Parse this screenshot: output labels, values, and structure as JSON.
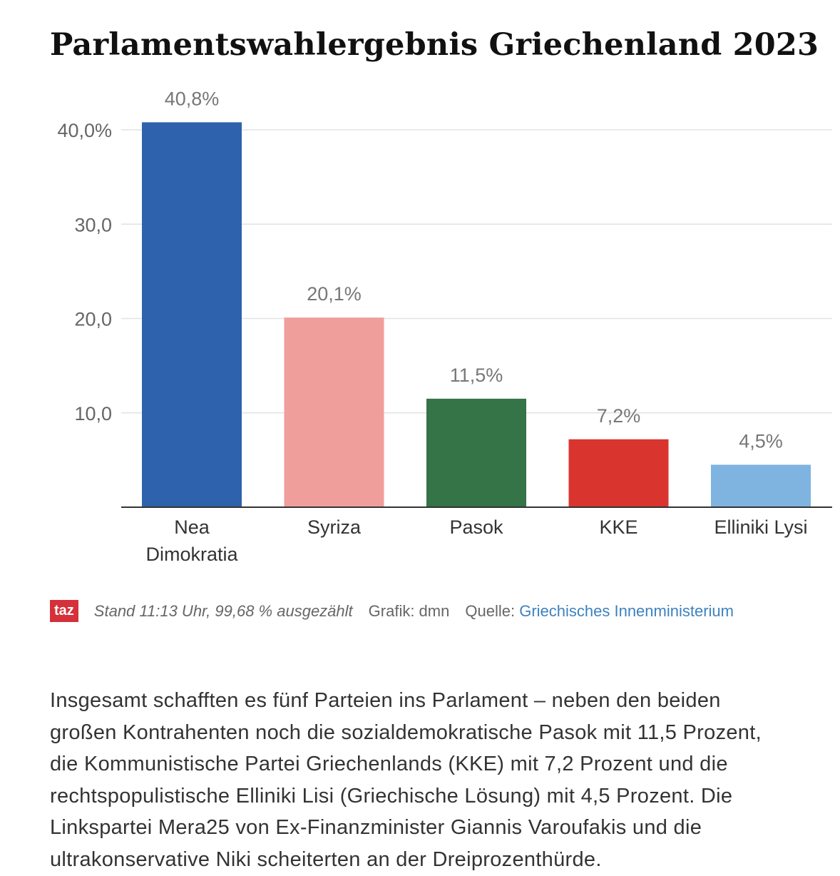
{
  "chart_data": {
    "type": "bar",
    "title": "Parlamentswahlergebnis Griechenland 2023",
    "categories": [
      [
        "Nea",
        "Dimokratia"
      ],
      [
        "Syriza"
      ],
      [
        "Pasok"
      ],
      [
        "KKE"
      ],
      [
        "Elliniki Lysi"
      ]
    ],
    "values": [
      40.8,
      20.1,
      11.5,
      7.2,
      4.5
    ],
    "data_labels": [
      "40,8%",
      "20,1%",
      "11,5%",
      "7,2%",
      "4,5%"
    ],
    "colors": [
      "#2f62ad",
      "#f09e9b",
      "#347446",
      "#d9352e",
      "#7fb3e0"
    ],
    "yticks": [
      10,
      20,
      30,
      40
    ],
    "ytick_labels": [
      "10,0",
      "20,0",
      "30,0",
      "40,0%"
    ],
    "ylim": [
      0,
      40.8
    ],
    "grid": true,
    "xlabel": "",
    "ylabel": ""
  },
  "footer": {
    "logo": "taz",
    "stand": "Stand 11:13 Uhr, 99,68 % ausgezählt",
    "grafik": "Grafik: dmn",
    "quelle_label": "Quelle:",
    "quelle_link": "Griechisches Innenministerium"
  },
  "article": {
    "lines": [
      "Insgesamt schafften es fünf Parteien ins Parlament – neben den beiden",
      "großen Kontrahenten noch die sozialdemokratische Pasok mit 11,5 Prozent,",
      "die Kommunistische Partei Griechenlands (KKE) mit 7,2 Prozent und die",
      "rechtspopulistische Elliniki Lisi (Griechische Lösung) mit 4,5 Prozent. Die",
      "Linkspartei Mera25 von Ex-Finanzminister Giannis Varoufakis und die",
      "ultrakonservative Niki scheiterten an der Dreiprozenthürde."
    ]
  }
}
